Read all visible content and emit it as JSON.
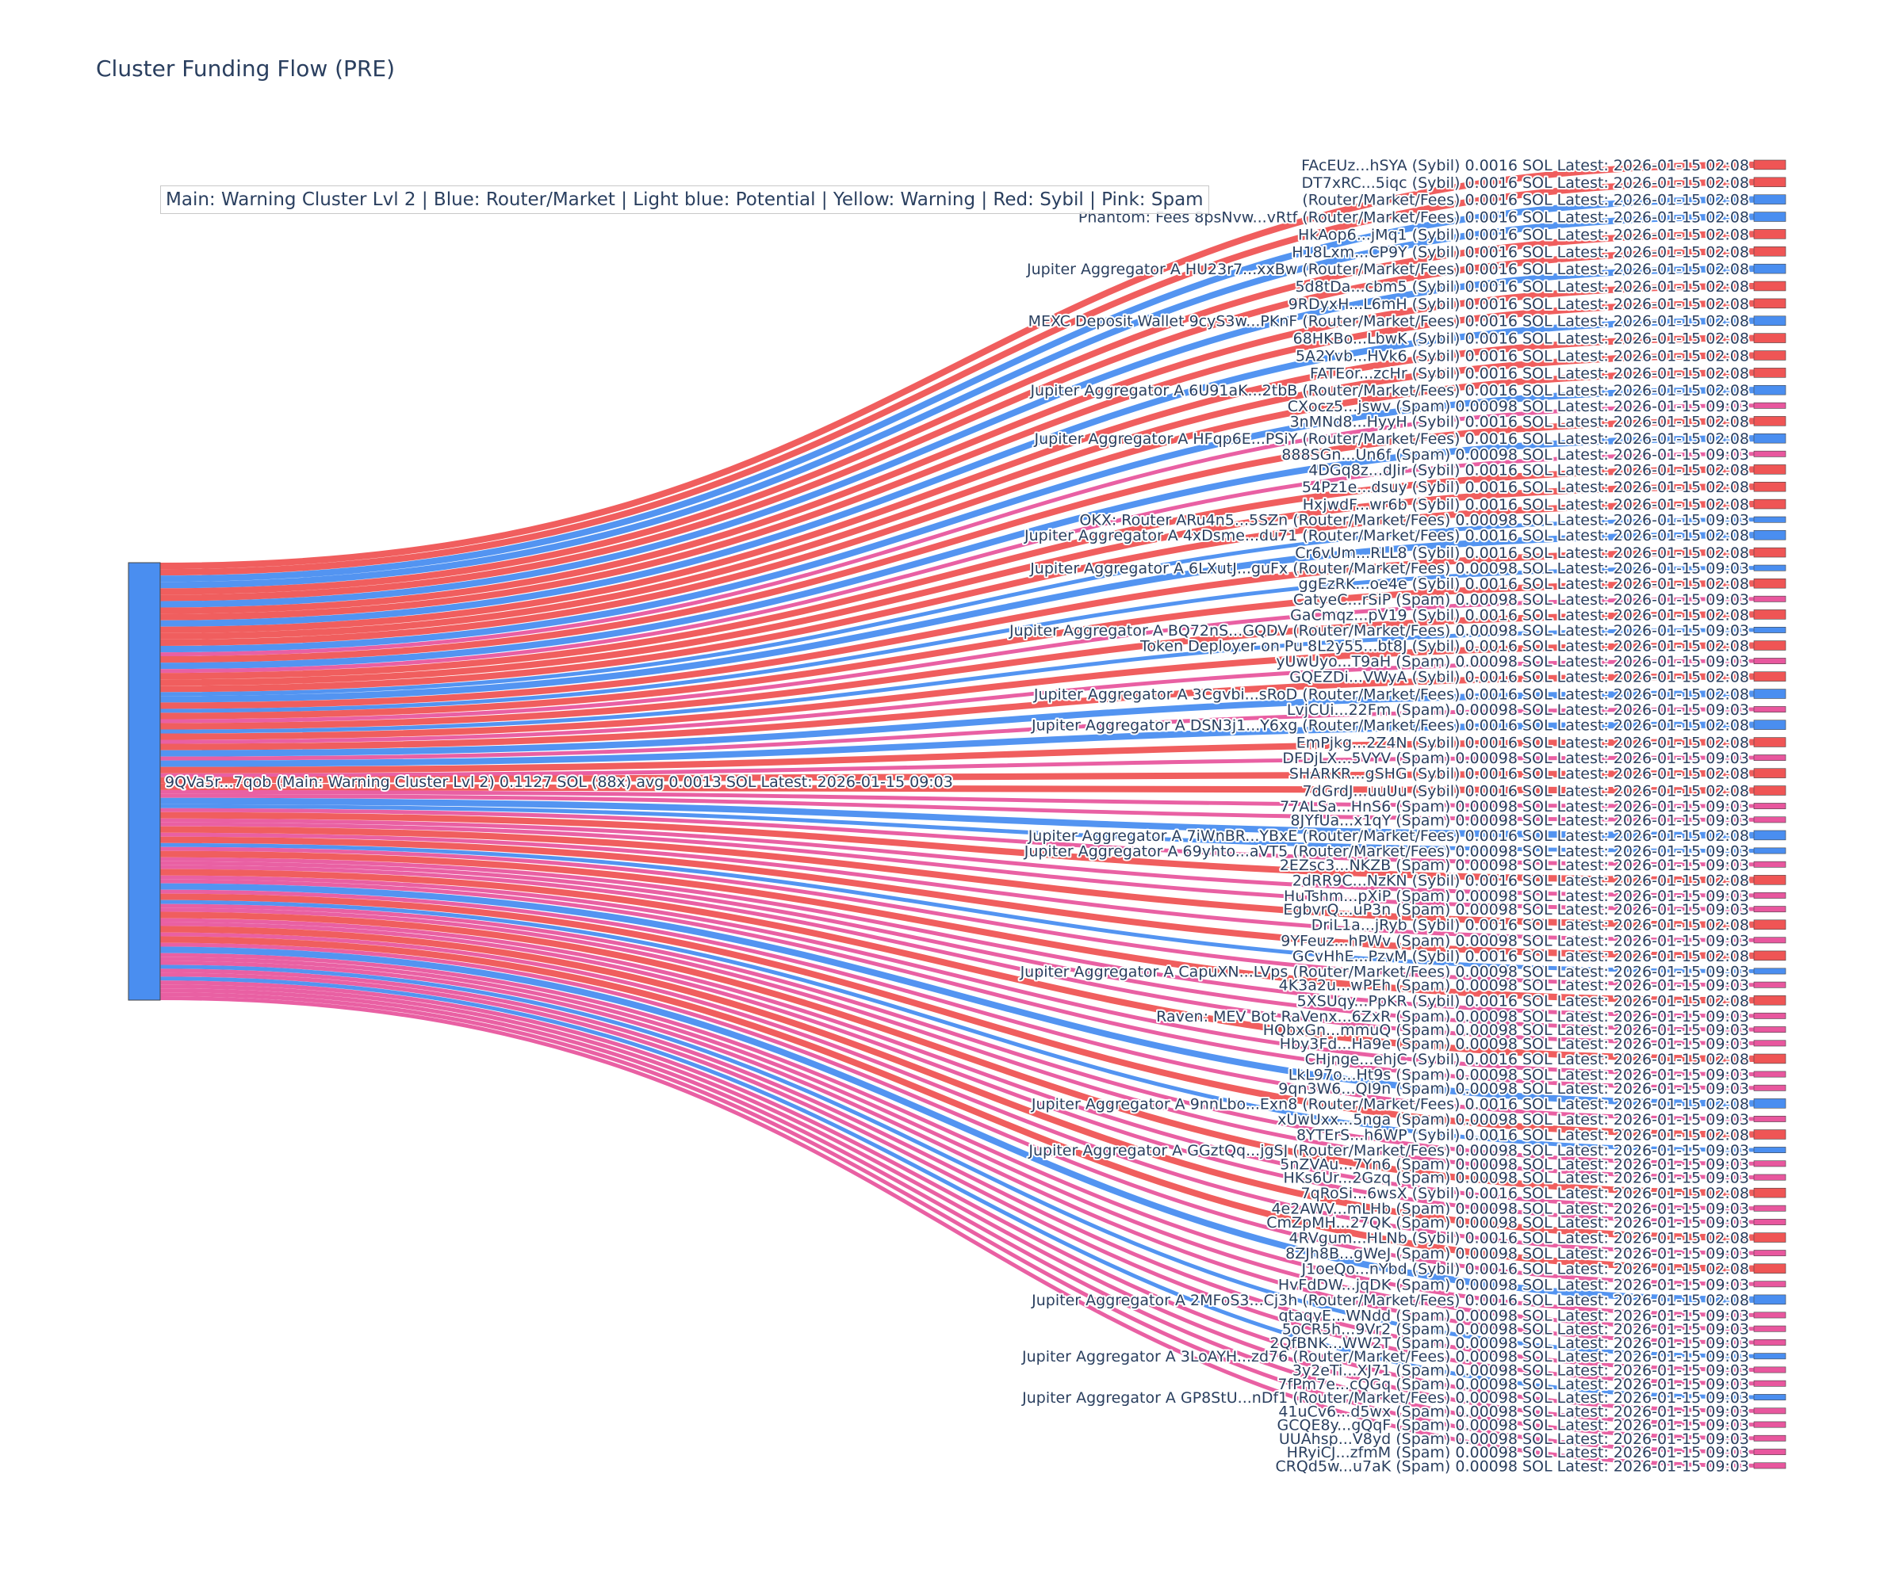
{
  "title": "Cluster Funding Flow (PRE)",
  "legend_text": "Main: Warning Cluster Lvl 2  |  Blue: Router/Market | Light blue: Potential | Yellow: Warning | Red: Sybil | Pink: Spam",
  "colors": {
    "Sybil": "#ef5555",
    "Spam": "#e8579e",
    "Router": "#4a8ef0",
    "source_node": "#4a8ef0"
  },
  "chart_data": {
    "type": "sankey",
    "source": {
      "label": "9QVa5r...7qob (Main: Warning Cluster Lvl 2) 0.1127 SOL (88x) avg 0.0013 SOL Latest: 2026-01-15 09:03",
      "total_sol": 0.1127,
      "count": 88,
      "avg_sol": 0.0013
    },
    "targets": [
      {
        "label": "FAcEUz...hSYA (Sybil) 0.0016 SOL Latest: 2026-01-15 02:08",
        "cat": "Sybil",
        "value": 0.0016
      },
      {
        "label": "DT7xRC...5iqc (Sybil) 0.0016 SOL Latest: 2026-01-15 02:08",
        "cat": "Sybil",
        "value": 0.0016
      },
      {
        "label": "(Router/Market/Fees) 0.0016 SOL Latest: 2026-01-15 02:08",
        "cat": "Router",
        "value": 0.0016
      },
      {
        "label": "Phantom: Fees 8psNvw...vRtf (Router/Market/Fees) 0.0016 SOL Latest: 2026-01-15 02:08",
        "cat": "Router",
        "value": 0.0016
      },
      {
        "label": "HkAop6...jMq1 (Sybil) 0.0016 SOL Latest: 2026-01-15 02:08",
        "cat": "Sybil",
        "value": 0.0016
      },
      {
        "label": "H18Lxm...CP9Y (Sybil) 0.0016 SOL Latest: 2026-01-15 02:08",
        "cat": "Sybil",
        "value": 0.0016
      },
      {
        "label": "Jupiter Aggregator A HU23r7...xxBw (Router/Market/Fees) 0.0016 SOL Latest: 2026-01-15 02:08",
        "cat": "Router",
        "value": 0.0016
      },
      {
        "label": "5d8tDa...cbm5 (Sybil) 0.0016 SOL Latest: 2026-01-15 02:08",
        "cat": "Sybil",
        "value": 0.0016
      },
      {
        "label": "9RDyxH...L6mH (Sybil) 0.0016 SOL Latest: 2026-01-15 02:08",
        "cat": "Sybil",
        "value": 0.0016
      },
      {
        "label": "MEXC Deposit Wallet 9cyS3w...PKnF (Router/Market/Fees) 0.0016 SOL Latest: 2026-01-15 02:08",
        "cat": "Router",
        "value": 0.0016
      },
      {
        "label": "68HKBo...LbwK (Sybil) 0.0016 SOL Latest: 2026-01-15 02:08",
        "cat": "Sybil",
        "value": 0.0016
      },
      {
        "label": "5A2Yvb...HVk6 (Sybil) 0.0016 SOL Latest: 2026-01-15 02:08",
        "cat": "Sybil",
        "value": 0.0016
      },
      {
        "label": "FATEor...zcHr (Sybil) 0.0016 SOL Latest: 2026-01-15 02:08",
        "cat": "Sybil",
        "value": 0.0016
      },
      {
        "label": "Jupiter Aggregator A 6U91aK...2tbB (Router/Market/Fees) 0.0016 SOL Latest: 2026-01-15 02:08",
        "cat": "Router",
        "value": 0.0016
      },
      {
        "label": "CXocz5...jswv (Spam) 0.00098 SOL Latest: 2026-01-15 09:03",
        "cat": "Spam",
        "value": 0.00098
      },
      {
        "label": "3nMNd8...HyyH (Sybil) 0.0016 SOL Latest: 2026-01-15 02:08",
        "cat": "Sybil",
        "value": 0.0016
      },
      {
        "label": "Jupiter Aggregator A HFqp6E...PSiY (Router/Market/Fees) 0.0016 SOL Latest: 2026-01-15 02:08",
        "cat": "Router",
        "value": 0.0016
      },
      {
        "label": "888SGn...Un6f (Spam) 0.00098 SOL Latest: 2026-01-15 09:03",
        "cat": "Spam",
        "value": 0.00098
      },
      {
        "label": "4DGq8z...dJir (Sybil) 0.0016 SOL Latest: 2026-01-15 02:08",
        "cat": "Sybil",
        "value": 0.0016
      },
      {
        "label": "54Pz1e...dsuy (Sybil) 0.0016 SOL Latest: 2026-01-15 02:08",
        "cat": "Sybil",
        "value": 0.0016
      },
      {
        "label": "HxjwdF...wr6b (Sybil) 0.0016 SOL Latest: 2026-01-15 02:08",
        "cat": "Sybil",
        "value": 0.0016
      },
      {
        "label": "OKX: Router ARu4n5...5SZn (Router/Market/Fees) 0.00098 SOL Latest: 2026-01-15 09:03",
        "cat": "Router",
        "value": 0.00098
      },
      {
        "label": "Jupiter Aggregator A 4xDsme...du71 (Router/Market/Fees) 0.0016 SOL Latest: 2026-01-15 02:08",
        "cat": "Router",
        "value": 0.0016
      },
      {
        "label": "Cr6vUm...RLL8 (Sybil) 0.0016 SOL Latest: 2026-01-15 02:08",
        "cat": "Sybil",
        "value": 0.0016
      },
      {
        "label": "Jupiter Aggregator A 6LXutJ...guFx (Router/Market/Fees) 0.00098 SOL Latest: 2026-01-15 09:03",
        "cat": "Router",
        "value": 0.00098
      },
      {
        "label": "ggEzRK...oe4e (Sybil) 0.0016 SOL Latest: 2026-01-15 02:08",
        "cat": "Sybil",
        "value": 0.0016
      },
      {
        "label": "CatyeC...rSiP (Spam) 0.00098 SOL Latest: 2026-01-15 09:03",
        "cat": "Spam",
        "value": 0.00098
      },
      {
        "label": "GaCmqz...pV19 (Sybil) 0.0016 SOL Latest: 2026-01-15 02:08",
        "cat": "Sybil",
        "value": 0.0016
      },
      {
        "label": "Jupiter Aggregator A BQ72nS...GQDV (Router/Market/Fees) 0.00098 SOL Latest: 2026-01-15 09:03",
        "cat": "Router",
        "value": 0.00098
      },
      {
        "label": "Token Deployer on Pu 8L2y55...bt8J (Sybil) 0.0016 SOL Latest: 2026-01-15 02:08",
        "cat": "Sybil",
        "value": 0.0016
      },
      {
        "label": "yUwUyo...T9aH (Spam) 0.00098 SOL Latest: 2026-01-15 09:03",
        "cat": "Spam",
        "value": 0.00098
      },
      {
        "label": "GQEZDi...VWyA (Sybil) 0.0016 SOL Latest: 2026-01-15 02:08",
        "cat": "Sybil",
        "value": 0.0016
      },
      {
        "label": "Jupiter Aggregator A 3Cgvbi...sRoD (Router/Market/Fees) 0.0016 SOL Latest: 2026-01-15 02:08",
        "cat": "Router",
        "value": 0.0016
      },
      {
        "label": "LvjCUi...22Fm (Spam) 0.00098 SOL Latest: 2026-01-15 09:03",
        "cat": "Spam",
        "value": 0.00098
      },
      {
        "label": "Jupiter Aggregator A DSN3j1...Y6xg (Router/Market/Fees) 0.0016 SOL Latest: 2026-01-15 02:08",
        "cat": "Router",
        "value": 0.0016
      },
      {
        "label": "EmPjkg...2Z4N (Sybil) 0.0016 SOL Latest: 2026-01-15 02:08",
        "cat": "Sybil",
        "value": 0.0016
      },
      {
        "label": "DFDjLX...5VYV (Spam) 0.00098 SOL Latest: 2026-01-15 09:03",
        "cat": "Spam",
        "value": 0.00098
      },
      {
        "label": "SHARKR...gSHG (Sybil) 0.0016 SOL Latest: 2026-01-15 02:08",
        "cat": "Sybil",
        "value": 0.0016
      },
      {
        "label": "7dGrdJ...uuUu (Sybil) 0.0016 SOL Latest: 2026-01-15 02:08",
        "cat": "Sybil",
        "value": 0.0016
      },
      {
        "label": "77ALSa...HnS6 (Spam) 0.00098 SOL Latest: 2026-01-15 09:03",
        "cat": "Spam",
        "value": 0.00098
      },
      {
        "label": "8JYfUa...x1qY (Spam) 0.00098 SOL Latest: 2026-01-15 09:03",
        "cat": "Spam",
        "value": 0.00098
      },
      {
        "label": "Jupiter Aggregator A 7iWnBR...YBxE (Router/Market/Fees) 0.0016 SOL Latest: 2026-01-15 02:08",
        "cat": "Router",
        "value": 0.0016
      },
      {
        "label": "Jupiter Aggregator A 69yhto...aVT5 (Router/Market/Fees) 0.00098 SOL Latest: 2026-01-15 09:03",
        "cat": "Router",
        "value": 0.00098
      },
      {
        "label": "2EZsc3...NKZB (Spam) 0.00098 SOL Latest: 2026-01-15 09:03",
        "cat": "Spam",
        "value": 0.00098
      },
      {
        "label": "2dRR9C...NzKN (Sybil) 0.0016 SOL Latest: 2026-01-15 02:08",
        "cat": "Sybil",
        "value": 0.0016
      },
      {
        "label": "HuTshm...pXiP (Spam) 0.00098 SOL Latest: 2026-01-15 09:03",
        "cat": "Spam",
        "value": 0.00098
      },
      {
        "label": "EgbvrQ...uP3n (Spam) 0.00098 SOL Latest: 2026-01-15 09:03",
        "cat": "Spam",
        "value": 0.00098
      },
      {
        "label": "DriL1a...jRyb (Sybil) 0.0016 SOL Latest: 2026-01-15 02:08",
        "cat": "Sybil",
        "value": 0.0016
      },
      {
        "label": "9YFeuz...hPWv (Spam) 0.00098 SOL Latest: 2026-01-15 09:03",
        "cat": "Spam",
        "value": 0.00098
      },
      {
        "label": "GCvHhE...PzvM (Sybil) 0.0016 SOL Latest: 2026-01-15 02:08",
        "cat": "Sybil",
        "value": 0.0016
      },
      {
        "label": "Jupiter Aggregator A CapuXN...LVps (Router/Market/Fees) 0.00098 SOL Latest: 2026-01-15 09:03",
        "cat": "Router",
        "value": 0.00098
      },
      {
        "label": "4K3a2u...wPEh (Spam) 0.00098 SOL Latest: 2026-01-15 09:03",
        "cat": "Spam",
        "value": 0.00098
      },
      {
        "label": "5XSUqy...PpKR (Sybil) 0.0016 SOL Latest: 2026-01-15 02:08",
        "cat": "Sybil",
        "value": 0.0016
      },
      {
        "label": "Raven: MEV Bot RaVenx...6ZxR (Spam) 0.00098 SOL Latest: 2026-01-15 09:03",
        "cat": "Spam",
        "value": 0.00098
      },
      {
        "label": "HQbxGn...mmuQ (Spam) 0.00098 SOL Latest: 2026-01-15 09:03",
        "cat": "Spam",
        "value": 0.00098
      },
      {
        "label": "Hby3Fd...Ha9e (Spam) 0.00098 SOL Latest: 2026-01-15 09:03",
        "cat": "Spam",
        "value": 0.00098
      },
      {
        "label": "CHjnge...ehjC (Sybil) 0.0016 SOL Latest: 2026-01-15 02:08",
        "cat": "Sybil",
        "value": 0.0016
      },
      {
        "label": "LkL97o...Ht9s (Spam) 0.00098 SOL Latest: 2026-01-15 09:03",
        "cat": "Spam",
        "value": 0.00098
      },
      {
        "label": "9qn3W6...QI9n (Spam) 0.00098 SOL Latest: 2026-01-15 09:03",
        "cat": "Spam",
        "value": 0.00098
      },
      {
        "label": "Jupiter Aggregator A 9nnLbo...Exn8 (Router/Market/Fees) 0.0016 SOL Latest: 2026-01-15 02:08",
        "cat": "Router",
        "value": 0.0016
      },
      {
        "label": "xUwUxx...5nga (Spam) 0.00098 SOL Latest: 2026-01-15 09:03",
        "cat": "Spam",
        "value": 0.00098
      },
      {
        "label": "8YTErS...h6WP (Sybil) 0.0016 SOL Latest: 2026-01-15 02:08",
        "cat": "Sybil",
        "value": 0.0016
      },
      {
        "label": "Jupiter Aggregator A GGztQq...jgSJ (Router/Market/Fees) 0.00098 SOL Latest: 2026-01-15 09:03",
        "cat": "Router",
        "value": 0.00098
      },
      {
        "label": "5nZVAu...7Yn6 (Spam) 0.00098 SOL Latest: 2026-01-15 09:03",
        "cat": "Spam",
        "value": 0.00098
      },
      {
        "label": "HKs6Ur...2Gzq (Spam) 0.00098 SOL Latest: 2026-01-15 09:03",
        "cat": "Spam",
        "value": 0.00098
      },
      {
        "label": "7qRoSi...6wsX (Sybil) 0.0016 SOL Latest: 2026-01-15 02:08",
        "cat": "Sybil",
        "value": 0.0016
      },
      {
        "label": "4e2AWV...mLHb (Spam) 0.00098 SOL Latest: 2026-01-15 09:03",
        "cat": "Spam",
        "value": 0.00098
      },
      {
        "label": "CmZpMH...27QK (Spam) 0.00098 SOL Latest: 2026-01-15 09:03",
        "cat": "Spam",
        "value": 0.00098
      },
      {
        "label": "4RVgum...HLNb (Sybil) 0.0016 SOL Latest: 2026-01-15 02:08",
        "cat": "Sybil",
        "value": 0.0016
      },
      {
        "label": "8ZJh8B...gWeJ (Spam) 0.00098 SOL Latest: 2026-01-15 09:03",
        "cat": "Spam",
        "value": 0.00098
      },
      {
        "label": "J1oeQo...nYbd (Sybil) 0.0016 SOL Latest: 2026-01-15 02:08",
        "cat": "Sybil",
        "value": 0.0016
      },
      {
        "label": "HvFdDW...jqDK (Spam) 0.00098 SOL Latest: 2026-01-15 09:03",
        "cat": "Spam",
        "value": 0.00098
      },
      {
        "label": "Jupiter Aggregator A 2MFoS3...Cj3h (Router/Market/Fees) 0.0016 SOL Latest: 2026-01-15 02:08",
        "cat": "Router",
        "value": 0.0016
      },
      {
        "label": "qtaqyE...WNdd (Spam) 0.00098 SOL Latest: 2026-01-15 09:03",
        "cat": "Spam",
        "value": 0.00098
      },
      {
        "label": "5oCR5h...9Vr2 (Spam) 0.00098 SOL Latest: 2026-01-15 09:03",
        "cat": "Spam",
        "value": 0.00098
      },
      {
        "label": "2QfBNK...WW2T (Spam) 0.00098 SOL Latest: 2026-01-15 09:03",
        "cat": "Spam",
        "value": 0.00098
      },
      {
        "label": "Jupiter Aggregator A 3LoAYH...zd76 (Router/Market/Fees) 0.00098 SOL Latest: 2026-01-15 09:03",
        "cat": "Router",
        "value": 0.00098
      },
      {
        "label": "3y2eTi...XJ71 (Spam) 0.00098 SOL Latest: 2026-01-15 09:03",
        "cat": "Spam",
        "value": 0.00098
      },
      {
        "label": "7fPm7e...cQGq (Spam) 0.00098 SOL Latest: 2026-01-15 09:03",
        "cat": "Spam",
        "value": 0.00098
      },
      {
        "label": "Jupiter Aggregator A GP8StU...nDf1 (Router/Market/Fees) 0.00098 SOL Latest: 2026-01-15 09:03",
        "cat": "Router",
        "value": 0.00098
      },
      {
        "label": "41uCv6...d5wx (Spam) 0.00098 SOL Latest: 2026-01-15 09:03",
        "cat": "Spam",
        "value": 0.00098
      },
      {
        "label": "GCQE8y...gQqF (Spam) 0.00098 SOL Latest: 2026-01-15 09:03",
        "cat": "Spam",
        "value": 0.00098
      },
      {
        "label": "UUAhsp...V8yd (Spam) 0.00098 SOL Latest: 2026-01-15 09:03",
        "cat": "Spam",
        "value": 0.00098
      },
      {
        "label": "HRyiCJ...zfmM (Spam) 0.00098 SOL Latest: 2026-01-15 09:03",
        "cat": "Spam",
        "value": 0.00098
      },
      {
        "label": "CRQd5w...u7aK (Spam) 0.00098 SOL Latest: 2026-01-15 09:03",
        "cat": "Spam",
        "value": 0.00098
      }
    ]
  }
}
